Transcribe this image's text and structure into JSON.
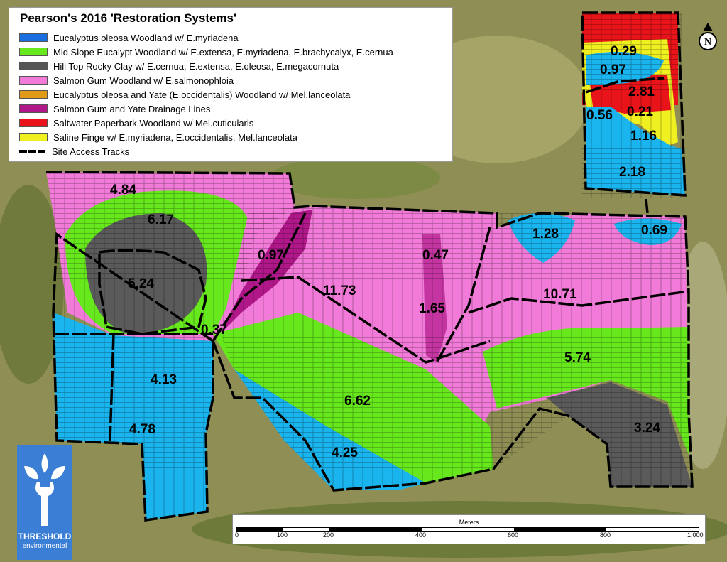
{
  "legend": {
    "title": "Pearson's 2016 'Restoration Systems'",
    "items": [
      {
        "label": "Eucalyptus oleosa Woodland w/ E.myriadena",
        "color": "#1a6fe0"
      },
      {
        "label": "Mid Slope Eucalypt Woodland w/ E.extensa, E.myriadena, E.brachycalyx, E.cernua",
        "color": "#66e81c"
      },
      {
        "label": "Hill Top Rocky Clay w/ E.cernua, E.extensa, E.oleosa, E.megacornuta",
        "color": "#555555"
      },
      {
        "label": "Salmon Gum Woodland w/ E.salmonophloia",
        "color": "#f27ad8"
      },
      {
        "label": "Eucalyptus oleosa and Yate (E.occidentalis) Woodland w/ Mel.lanceolata",
        "color": "#e09a18"
      },
      {
        "label": "Salmon Gum and Yate Drainage Lines",
        "color": "#b0188a"
      },
      {
        "label": "Saltwater Paperbark Woodland w/ Mel.cuticularis",
        "color": "#e8141a"
      },
      {
        "label": "Saline Finge w/ E.myriadena, E.occidentalis, Mel.lanceolata",
        "color": "#f0f020"
      },
      {
        "label": "Site Access Tracks",
        "color": "#000000"
      }
    ]
  },
  "areas": [
    "4.84",
    "6.17",
    "5.24",
    "0.97",
    "0.37",
    "4.13",
    "4.78",
    "11.73",
    "0.47",
    "1.65",
    "6.62",
    "4.25",
    "1.28",
    "0.69",
    "10.71",
    "5.74",
    "3.24",
    "0.29",
    "0.97",
    "2.81",
    "0.56",
    "0.21",
    "1.16",
    "2.18"
  ],
  "scale_bar": {
    "unit": "Meters",
    "ticks": [
      "0",
      "100",
      "200",
      "400",
      "600",
      "800",
      "1,000"
    ]
  },
  "logo": {
    "line1": "THRESHOLD",
    "line2": "environmental"
  },
  "north_arrow": "N"
}
